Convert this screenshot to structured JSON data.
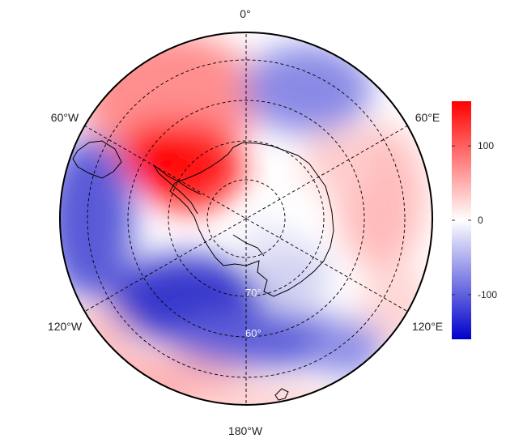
{
  "map": {
    "projection": "south-polar-stereographic",
    "longitude_labels": {
      "top": "0°",
      "upper_left": "60°W",
      "upper_right": "60°E",
      "lower_left": "120°W",
      "lower_right": "120°E",
      "bottom": "180°W"
    },
    "latitude_labels": [
      "70°",
      "60°"
    ]
  },
  "colorbar": {
    "ticks": [
      "100",
      "0",
      "-100"
    ],
    "tick_values": [
      100,
      0,
      -100
    ],
    "range": [
      -160,
      160
    ],
    "colors": {
      "low": "#0000cc",
      "mid": "#ffffff",
      "high": "#ff0000"
    }
  }
}
